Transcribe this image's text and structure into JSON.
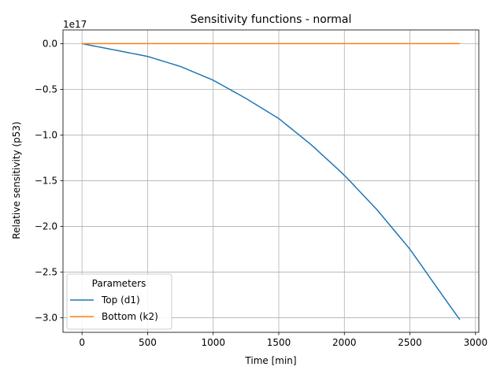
{
  "chart_data": {
    "type": "line",
    "title": "Sensitivity functions - normal",
    "xlabel": "Time [min]",
    "ylabel": "Relative sensitivity (p53)",
    "y_offset_label": "1e17",
    "xlim": [
      -145,
      3025
    ],
    "ylim": [
      -3.16,
      0.15
    ],
    "x_ticks": [
      0,
      500,
      1000,
      1500,
      2000,
      2500,
      3000
    ],
    "x_tick_labels": [
      "0",
      "500",
      "1000",
      "1500",
      "2000",
      "2500",
      "3000"
    ],
    "y_ticks": [
      0.0,
      -0.5,
      -1.0,
      -1.5,
      -2.0,
      -2.5,
      -3.0
    ],
    "y_tick_labels": [
      "0.0",
      "−0.5",
      "−1.0",
      "−1.5",
      "−2.0",
      "−2.5",
      "−3.0"
    ],
    "grid": true,
    "legend": {
      "title": "Parameters",
      "placement": "lower-left"
    },
    "series": [
      {
        "name": "Top (d1)",
        "color": "#1f77b4",
        "x": [
          0,
          250,
          500,
          750,
          1000,
          1250,
          1500,
          1750,
          2000,
          2250,
          2500,
          2750,
          2880
        ],
        "y": [
          0.0,
          -0.07,
          -0.14,
          -0.25,
          -0.4,
          -0.6,
          -0.82,
          -1.11,
          -1.44,
          -1.82,
          -2.25,
          -2.76,
          -3.02
        ]
      },
      {
        "name": "Bottom (k2)",
        "color": "#ff7f0e",
        "x": [
          0,
          2880
        ],
        "y": [
          0.0,
          0.0
        ]
      }
    ]
  }
}
